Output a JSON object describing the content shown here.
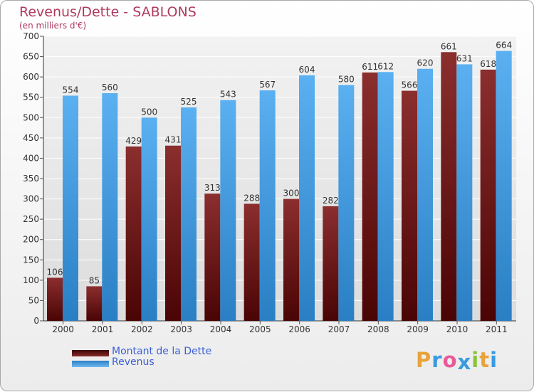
{
  "title": "Revenus/Dette - SABLONS",
  "subtitle": "(en milliers d'€)",
  "chart_data": {
    "type": "bar",
    "categories": [
      "2000",
      "2001",
      "2002",
      "2003",
      "2004",
      "2005",
      "2006",
      "2007",
      "2008",
      "2009",
      "2010",
      "2011"
    ],
    "series": [
      {
        "name": "Montant de la Dette",
        "values": [
          106,
          85,
          429,
          431,
          313,
          288,
          300,
          282,
          611,
          566,
          661,
          618
        ],
        "color": "#7a1c1c"
      },
      {
        "name": "Revenus",
        "values": [
          554,
          560,
          500,
          525,
          543,
          567,
          604,
          580,
          612,
          620,
          631,
          664
        ],
        "color": "#4aa3e8"
      }
    ],
    "yticks": [
      0,
      50,
      100,
      150,
      200,
      250,
      300,
      350,
      400,
      450,
      500,
      550,
      600,
      650,
      700
    ],
    "ylim": [
      0,
      700
    ],
    "grid": true,
    "legend_position": "bottom-left"
  },
  "legend": {
    "items": [
      {
        "label": "Montant de la Dette",
        "color": "#6e0f0f"
      },
      {
        "label": "Revenus",
        "color": "#4aa3e8"
      }
    ]
  },
  "logo": {
    "text": "Proxiti",
    "letters": [
      "P",
      "r",
      "o",
      "x",
      "i",
      "t",
      "i"
    ],
    "colors": [
      "#e8a33a",
      "#3a9be0",
      "#e85a9a",
      "#3a9be0",
      "#8ac33a",
      "#e8a33a",
      "#3a9be0"
    ]
  }
}
